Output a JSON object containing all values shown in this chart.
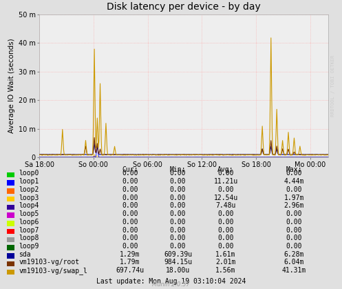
{
  "title": "Disk latency per device - by day",
  "ylabel": "Average IO Wait (seconds)",
  "background_color": "#e0e0e0",
  "plot_background": "#eeeeee",
  "grid_color": "#ff9999",
  "ylim": [
    0,
    0.05
  ],
  "yticks": [
    0,
    0.01,
    0.02,
    0.03,
    0.04,
    0.05
  ],
  "ytick_labels": [
    "0",
    "10 m",
    "20 m",
    "30 m",
    "40 m",
    "50 m"
  ],
  "xlabel_ticks": [
    "Sa 18:00",
    "So 00:00",
    "So 06:00",
    "So 12:00",
    "So 18:00",
    "Mo 00:00"
  ],
  "x_tick_positions": [
    0,
    0.1875,
    0.375,
    0.5625,
    0.75,
    0.9375
  ],
  "watermark": "RRDTOOL / TOBI OETKER",
  "legend_entries": [
    {
      "label": "loop0",
      "color": "#00cc00"
    },
    {
      "label": "loop1",
      "color": "#0000ff"
    },
    {
      "label": "loop2",
      "color": "#ff6600"
    },
    {
      "label": "loop3",
      "color": "#ffcc00"
    },
    {
      "label": "loop4",
      "color": "#330099"
    },
    {
      "label": "loop5",
      "color": "#cc00cc"
    },
    {
      "label": "loop6",
      "color": "#ccff00"
    },
    {
      "label": "loop7",
      "color": "#ff0000"
    },
    {
      "label": "loop8",
      "color": "#999999"
    },
    {
      "label": "loop9",
      "color": "#006600"
    },
    {
      "label": "sda",
      "color": "#000099"
    },
    {
      "label": "vm19103-vg/root",
      "color": "#7a3300"
    },
    {
      "label": "vm19103-vg/swap_l",
      "color": "#cc9900"
    }
  ],
  "table_headers": [
    "Cur:",
    "Min:",
    "Avg:",
    "Max:"
  ],
  "table_data": [
    [
      "0.00",
      "0.00",
      "0.00",
      "0.00"
    ],
    [
      "0.00",
      "0.00",
      "11.21u",
      "4.44m"
    ],
    [
      "0.00",
      "0.00",
      "0.00",
      "0.00"
    ],
    [
      "0.00",
      "0.00",
      "12.54u",
      "1.97m"
    ],
    [
      "0.00",
      "0.00",
      "7.48u",
      "2.96m"
    ],
    [
      "0.00",
      "0.00",
      "0.00",
      "0.00"
    ],
    [
      "0.00",
      "0.00",
      "0.00",
      "0.00"
    ],
    [
      "0.00",
      "0.00",
      "0.00",
      "0.00"
    ],
    [
      "0.00",
      "0.00",
      "0.00",
      "0.00"
    ],
    [
      "0.00",
      "0.00",
      "0.00",
      "0.00"
    ],
    [
      "1.29m",
      "609.39u",
      "1.61m",
      "6.28m"
    ],
    [
      "1.79m",
      "984.15u",
      "2.01m",
      "6.04m"
    ],
    [
      "697.74u",
      "18.00u",
      "1.56m",
      "41.31m"
    ]
  ],
  "last_update": "Last update: Mon Aug 19 03:10:04 2024",
  "munin_version": "Munin 2.0.57"
}
